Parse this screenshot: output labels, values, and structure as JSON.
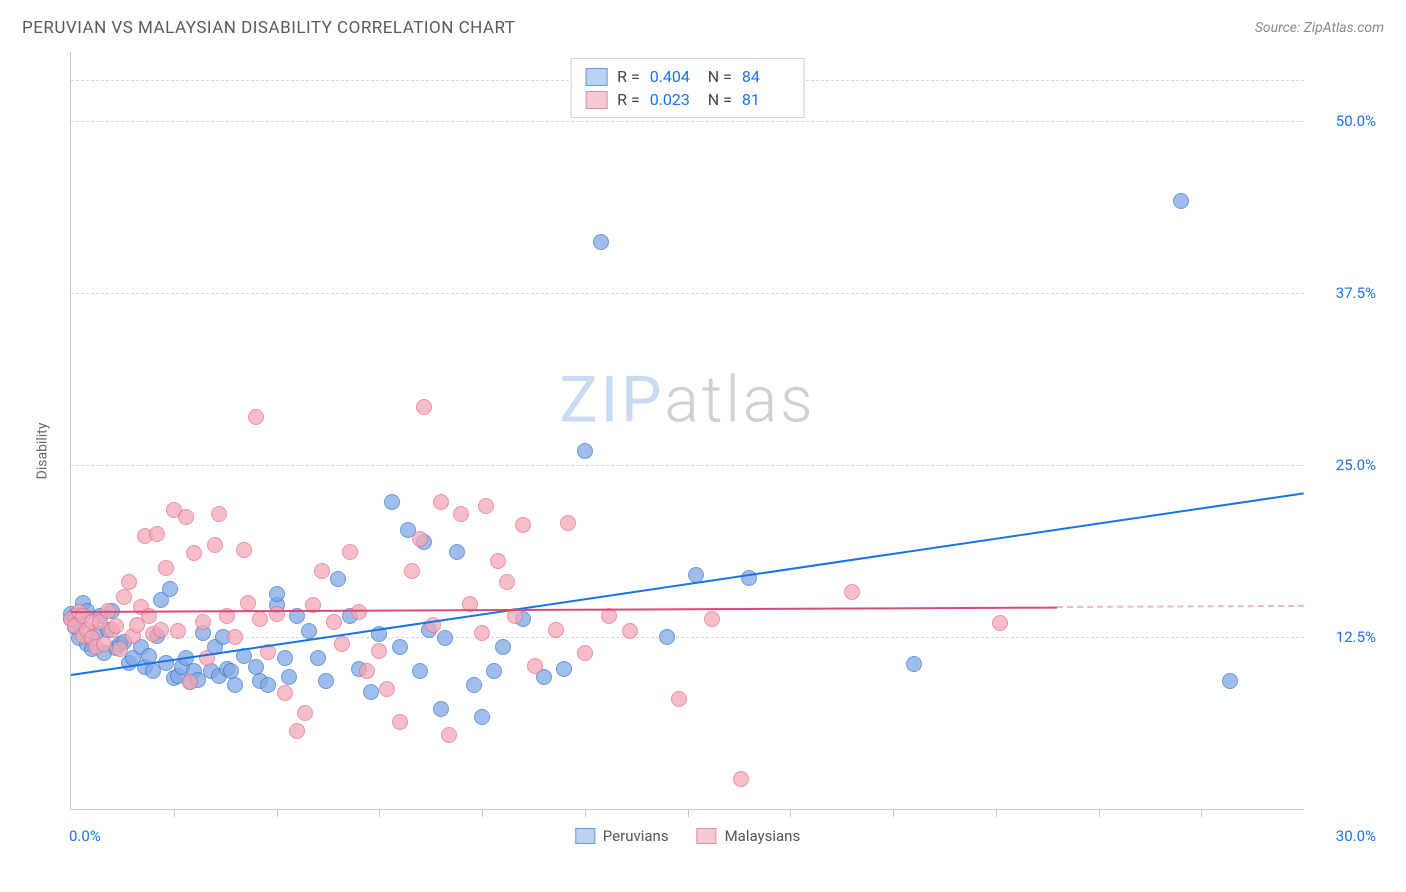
{
  "header": {
    "title": "PERUVIAN VS MALAYSIAN DISABILITY CORRELATION CHART",
    "source": "Source: ZipAtlas.com"
  },
  "chart": {
    "type": "scatter",
    "ylabel": "Disability",
    "xlim": [
      0,
      30
    ],
    "ylim": [
      0,
      55
    ],
    "xtick_step": 2.5,
    "background_color": "#ffffff",
    "grid_color": "#d8d8d8",
    "axis_color": "#c9c9c9",
    "yticks": [
      {
        "v": 12.5,
        "label": "12.5%"
      },
      {
        "v": 25.0,
        "label": "25.0%"
      },
      {
        "v": 37.5,
        "label": "37.5%"
      },
      {
        "v": 50.0,
        "label": "50.0%"
      }
    ],
    "xaxis_min_label": "0.0%",
    "xaxis_max_label": "30.0%",
    "ytick_color": "#1a73e8",
    "marker_radius": 8,
    "marker_border_width": 1,
    "marker_fill_opacity": 0.45,
    "watermark": {
      "zip": "ZIP",
      "atlas": "atlas"
    },
    "series": [
      {
        "name": "Peruvians",
        "color_fill": "#7fa9e6",
        "color_stroke": "#3f78c9",
        "swatch_fill": "#b9d1f2",
        "swatch_stroke": "#6a98d8",
        "R": "0.404",
        "N": "84",
        "trend": {
          "x1": 0,
          "y1": 9.8,
          "x2": 30,
          "y2": 23.0,
          "color": "#1a73e8",
          "solid_until_x": 30
        },
        "points": [
          [
            0.0,
            13.8
          ],
          [
            0.0,
            14.2
          ],
          [
            0.1,
            14.0
          ],
          [
            0.1,
            13.2
          ],
          [
            0.2,
            13.6
          ],
          [
            0.2,
            12.4
          ],
          [
            0.3,
            15.0
          ],
          [
            0.4,
            14.4
          ],
          [
            0.4,
            12.0
          ],
          [
            0.5,
            11.6
          ],
          [
            0.6,
            12.8
          ],
          [
            0.7,
            14.0
          ],
          [
            0.8,
            11.3
          ],
          [
            0.9,
            13.0
          ],
          [
            1.0,
            14.4
          ],
          [
            1.1,
            11.7
          ],
          [
            1.2,
            12.0
          ],
          [
            1.3,
            12.1
          ],
          [
            1.4,
            10.6
          ],
          [
            1.5,
            11.0
          ],
          [
            1.7,
            11.8
          ],
          [
            1.8,
            10.3
          ],
          [
            1.9,
            11.1
          ],
          [
            2.0,
            10.0
          ],
          [
            2.1,
            12.6
          ],
          [
            2.2,
            15.2
          ],
          [
            2.3,
            10.6
          ],
          [
            2.4,
            16.0
          ],
          [
            2.5,
            9.5
          ],
          [
            2.6,
            9.7
          ],
          [
            2.7,
            10.3
          ],
          [
            2.8,
            11.0
          ],
          [
            2.9,
            9.2
          ],
          [
            3.0,
            10.0
          ],
          [
            3.1,
            9.4
          ],
          [
            3.2,
            12.8
          ],
          [
            3.4,
            10.0
          ],
          [
            3.5,
            11.8
          ],
          [
            3.6,
            9.7
          ],
          [
            3.7,
            12.5
          ],
          [
            3.8,
            10.2
          ],
          [
            3.9,
            10.0
          ],
          [
            4.0,
            9.0
          ],
          [
            4.2,
            11.1
          ],
          [
            4.5,
            10.3
          ],
          [
            4.6,
            9.3
          ],
          [
            4.8,
            9.0
          ],
          [
            5.0,
            14.8
          ],
          [
            5.0,
            15.6
          ],
          [
            5.2,
            11.0
          ],
          [
            5.3,
            9.6
          ],
          [
            5.5,
            14.0
          ],
          [
            5.8,
            12.9
          ],
          [
            6.0,
            11.0
          ],
          [
            6.2,
            9.3
          ],
          [
            6.5,
            16.7
          ],
          [
            6.8,
            14.0
          ],
          [
            7.0,
            10.2
          ],
          [
            7.3,
            8.5
          ],
          [
            7.5,
            12.7
          ],
          [
            7.8,
            22.3
          ],
          [
            8.0,
            11.8
          ],
          [
            8.2,
            20.3
          ],
          [
            8.5,
            10.0
          ],
          [
            8.6,
            19.4
          ],
          [
            8.7,
            13.0
          ],
          [
            9.0,
            7.3
          ],
          [
            9.1,
            12.4
          ],
          [
            9.4,
            18.7
          ],
          [
            9.8,
            9.0
          ],
          [
            10.0,
            6.7
          ],
          [
            10.3,
            10.0
          ],
          [
            10.5,
            11.8
          ],
          [
            11.0,
            13.8
          ],
          [
            11.5,
            9.6
          ],
          [
            12.0,
            10.2
          ],
          [
            12.5,
            26.0
          ],
          [
            12.9,
            41.2
          ],
          [
            14.5,
            12.5
          ],
          [
            15.2,
            17.0
          ],
          [
            16.5,
            16.8
          ],
          [
            20.5,
            10.5
          ],
          [
            27.0,
            44.2
          ],
          [
            28.2,
            9.3
          ]
        ]
      },
      {
        "name": "Malaysians",
        "color_fill": "#f2a9b8",
        "color_stroke": "#e66f8e",
        "swatch_fill": "#f7c9d3",
        "swatch_stroke": "#e88ba2",
        "R": "0.023",
        "N": "81",
        "trend": {
          "x1": 0,
          "y1": 14.4,
          "x2": 30,
          "y2": 14.8,
          "color": "#d94a76",
          "solid_until_x": 24
        },
        "points": [
          [
            0.0,
            13.8
          ],
          [
            0.1,
            13.3
          ],
          [
            0.2,
            14.3
          ],
          [
            0.3,
            12.6
          ],
          [
            0.3,
            14.0
          ],
          [
            0.4,
            13.0
          ],
          [
            0.5,
            12.4
          ],
          [
            0.5,
            13.6
          ],
          [
            0.6,
            11.8
          ],
          [
            0.7,
            13.6
          ],
          [
            0.8,
            12.0
          ],
          [
            0.9,
            14.4
          ],
          [
            1.0,
            13.0
          ],
          [
            1.1,
            13.3
          ],
          [
            1.2,
            11.6
          ],
          [
            1.3,
            15.4
          ],
          [
            1.4,
            16.5
          ],
          [
            1.5,
            12.6
          ],
          [
            1.6,
            13.4
          ],
          [
            1.7,
            14.7
          ],
          [
            1.8,
            19.8
          ],
          [
            1.9,
            14.0
          ],
          [
            2.0,
            12.7
          ],
          [
            2.1,
            20.0
          ],
          [
            2.2,
            13.0
          ],
          [
            2.3,
            17.5
          ],
          [
            2.5,
            21.7
          ],
          [
            2.6,
            12.9
          ],
          [
            2.8,
            21.2
          ],
          [
            2.9,
            9.2
          ],
          [
            3.0,
            18.6
          ],
          [
            3.2,
            13.6
          ],
          [
            3.3,
            11.0
          ],
          [
            3.5,
            19.2
          ],
          [
            3.6,
            21.4
          ],
          [
            3.8,
            14.0
          ],
          [
            4.0,
            12.5
          ],
          [
            4.2,
            18.8
          ],
          [
            4.3,
            15.0
          ],
          [
            4.5,
            28.5
          ],
          [
            4.6,
            13.8
          ],
          [
            4.8,
            11.4
          ],
          [
            5.0,
            14.2
          ],
          [
            5.2,
            8.4
          ],
          [
            5.5,
            5.7
          ],
          [
            5.7,
            7.0
          ],
          [
            5.9,
            14.8
          ],
          [
            6.1,
            17.3
          ],
          [
            6.4,
            13.6
          ],
          [
            6.6,
            12.0
          ],
          [
            6.8,
            18.7
          ],
          [
            7.0,
            14.3
          ],
          [
            7.2,
            10.0
          ],
          [
            7.5,
            11.5
          ],
          [
            7.7,
            8.7
          ],
          [
            8.0,
            6.3
          ],
          [
            8.3,
            17.3
          ],
          [
            8.5,
            19.6
          ],
          [
            8.6,
            29.2
          ],
          [
            8.8,
            13.4
          ],
          [
            9.0,
            22.3
          ],
          [
            9.2,
            5.4
          ],
          [
            9.5,
            21.4
          ],
          [
            9.7,
            14.9
          ],
          [
            10.0,
            12.8
          ],
          [
            10.1,
            22.0
          ],
          [
            10.4,
            18.0
          ],
          [
            10.6,
            16.5
          ],
          [
            10.8,
            14.0
          ],
          [
            11.0,
            20.6
          ],
          [
            11.3,
            10.4
          ],
          [
            11.8,
            13.0
          ],
          [
            12.1,
            20.8
          ],
          [
            12.5,
            11.3
          ],
          [
            13.1,
            14.0
          ],
          [
            13.6,
            12.9
          ],
          [
            14.8,
            8.0
          ],
          [
            15.6,
            13.8
          ],
          [
            16.3,
            2.2
          ],
          [
            19.0,
            15.8
          ],
          [
            22.6,
            13.5
          ]
        ]
      }
    ],
    "legend_bottom": [
      {
        "label": "Peruvians",
        "fill": "#b9d1f2",
        "stroke": "#6a98d8"
      },
      {
        "label": "Malaysians",
        "fill": "#f7c9d3",
        "stroke": "#e88ba2"
      }
    ]
  }
}
